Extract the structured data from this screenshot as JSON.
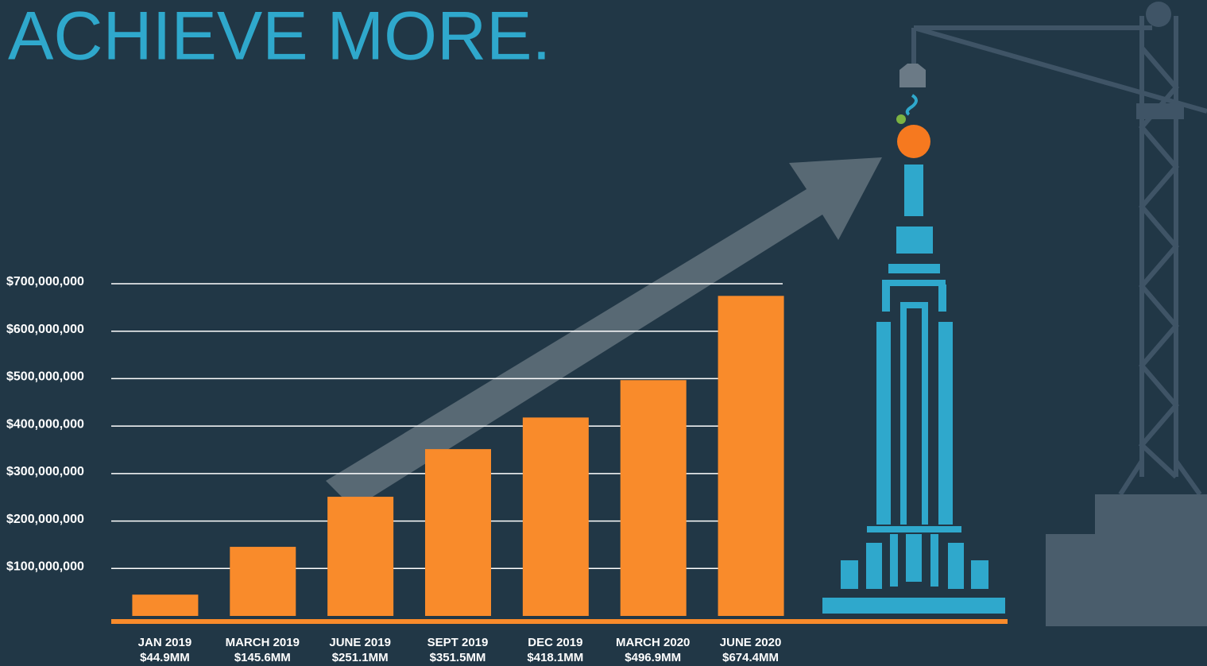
{
  "chart_data": {
    "type": "bar",
    "title": "ACHIEVE MORE.",
    "categories": [
      "JAN 2019",
      "MARCH 2019",
      "JUNE 2019",
      "SEPT 2019",
      "DEC 2019",
      "MARCH 2020",
      "JUNE 2020"
    ],
    "values": [
      44900000,
      145600000,
      251100000,
      351500000,
      418100000,
      496900000,
      674400000
    ],
    "value_labels": [
      "$44.9MM",
      "$145.6MM",
      "$251.1MM",
      "$351.5MM",
      "$418.1MM",
      "$496.9MM",
      "$674.4MM"
    ],
    "color": "#f98b2b",
    "ylim": [
      0,
      700000000
    ],
    "yticks": [
      {
        "value": 100000000,
        "label": "$100,000,000"
      },
      {
        "value": 200000000,
        "label": "$200,000,000"
      },
      {
        "value": 300000000,
        "label": "$300,000,000"
      },
      {
        "value": 400000000,
        "label": "$400,000,000"
      },
      {
        "value": 500000000,
        "label": "$500,000,000"
      },
      {
        "value": 600000000,
        "label": "$600,000,000"
      },
      {
        "value": 700000000,
        "label": "$700,000,000"
      }
    ],
    "grid": true
  }
}
